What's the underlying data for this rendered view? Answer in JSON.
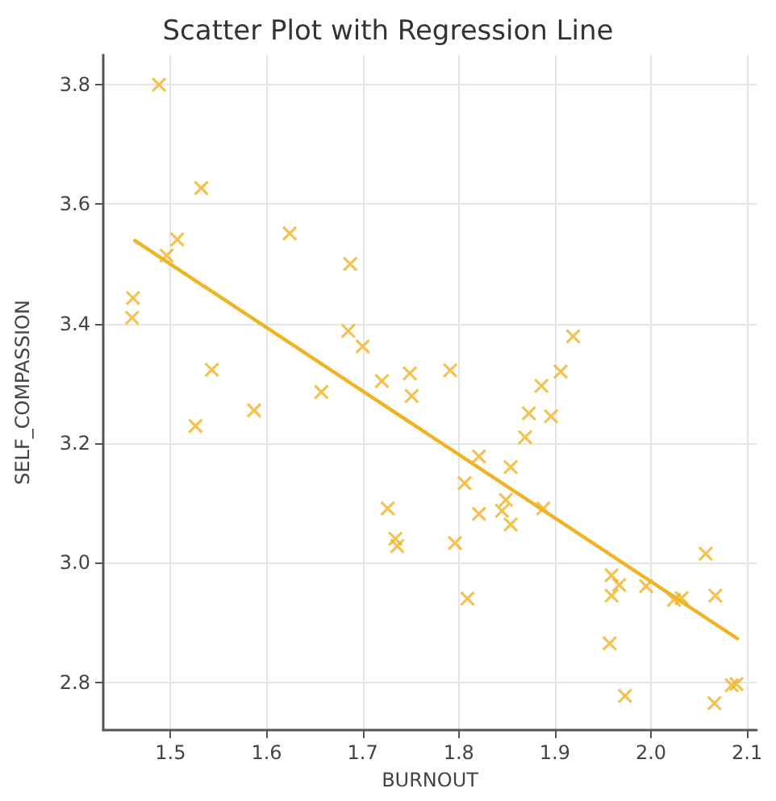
{
  "chart_data": {
    "type": "scatter",
    "title": "Scatter Plot with Regression Line",
    "xlabel": "BURNOUT",
    "ylabel": "SELF_COMPASSION",
    "xlim": [
      1.43,
      2.11
    ],
    "xticks": [
      1.5,
      1.6,
      1.7,
      1.8,
      1.9,
      {
        "value": 2,
        "label": "2.0"
      },
      2.1
    ],
    "ylim": [
      2.72,
      3.85
    ],
    "yticks": [
      2.8,
      {
        "value": 3,
        "label": "3.0"
      },
      3.2,
      3.4,
      3.6,
      3.8
    ],
    "grid": true,
    "marker": "cross",
    "series": [
      {
        "color": "#f0b323",
        "x": [
          1.488,
          1.532,
          1.507,
          1.496,
          1.461,
          1.46,
          1.543,
          1.526,
          1.587,
          1.624,
          1.657,
          1.687,
          1.685,
          1.7,
          1.72,
          1.749,
          1.751,
          1.791,
          1.919,
          1.906,
          1.886,
          1.873,
          1.896,
          1.869,
          1.821,
          1.854,
          1.806,
          1.726,
          1.734,
          1.736,
          1.796,
          1.809,
          1.821,
          1.845,
          1.849,
          1.854,
          1.888,
          1.959,
          1.967,
          1.959,
          1.995,
          2.024,
          2.032,
          2.057,
          2.067,
          1.957,
          1.973,
          2.066,
          2.084,
          2.089
        ],
        "values": [
          3.8,
          3.627,
          3.541,
          3.514,
          3.443,
          3.41,
          3.323,
          3.229,
          3.255,
          3.551,
          3.286,
          3.5,
          3.388,
          3.362,
          3.304,
          3.317,
          3.279,
          3.322,
          3.379,
          3.32,
          3.296,
          3.25,
          3.245,
          3.21,
          3.178,
          3.16,
          3.133,
          3.091,
          3.04,
          3.028,
          3.033,
          2.94,
          3.082,
          3.087,
          3.105,
          3.064,
          3.091,
          2.979,
          2.963,
          2.945,
          2.961,
          2.938,
          2.941,
          3.015,
          2.945,
          2.865,
          2.777,
          2.765,
          2.795,
          2.797
        ]
      },
      {
        "type": "line",
        "color": "#f0b323",
        "marker": "none",
        "x": [
          1.463,
          2.09
        ],
        "values": [
          3.539,
          2.873
        ]
      }
    ]
  }
}
